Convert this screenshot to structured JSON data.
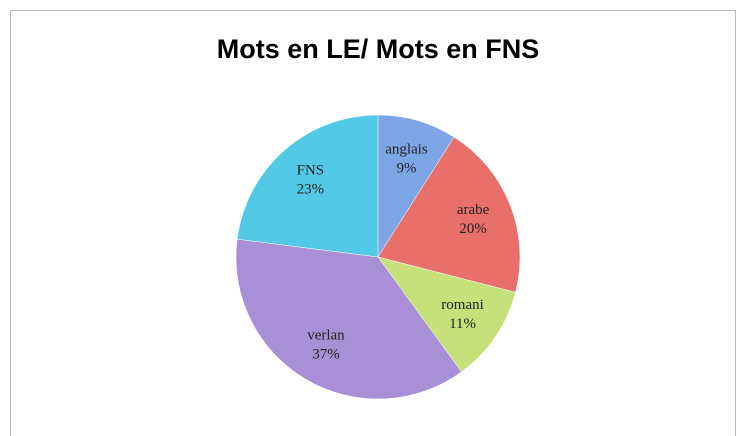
{
  "chart_data": {
    "type": "pie",
    "title": "Mots en LE/ Mots en FNS",
    "categories": [
      "anglais",
      "arabe",
      "romani",
      "verlan",
      "FNS"
    ],
    "values": [
      9,
      20,
      11,
      37,
      23
    ],
    "value_labels": [
      "9%",
      "20%",
      "11%",
      "37%",
      "23%"
    ],
    "colors": [
      "#7ea6e6",
      "#e96f6b",
      "#c6e07a",
      "#a98fd6",
      "#52c9e6"
    ]
  }
}
